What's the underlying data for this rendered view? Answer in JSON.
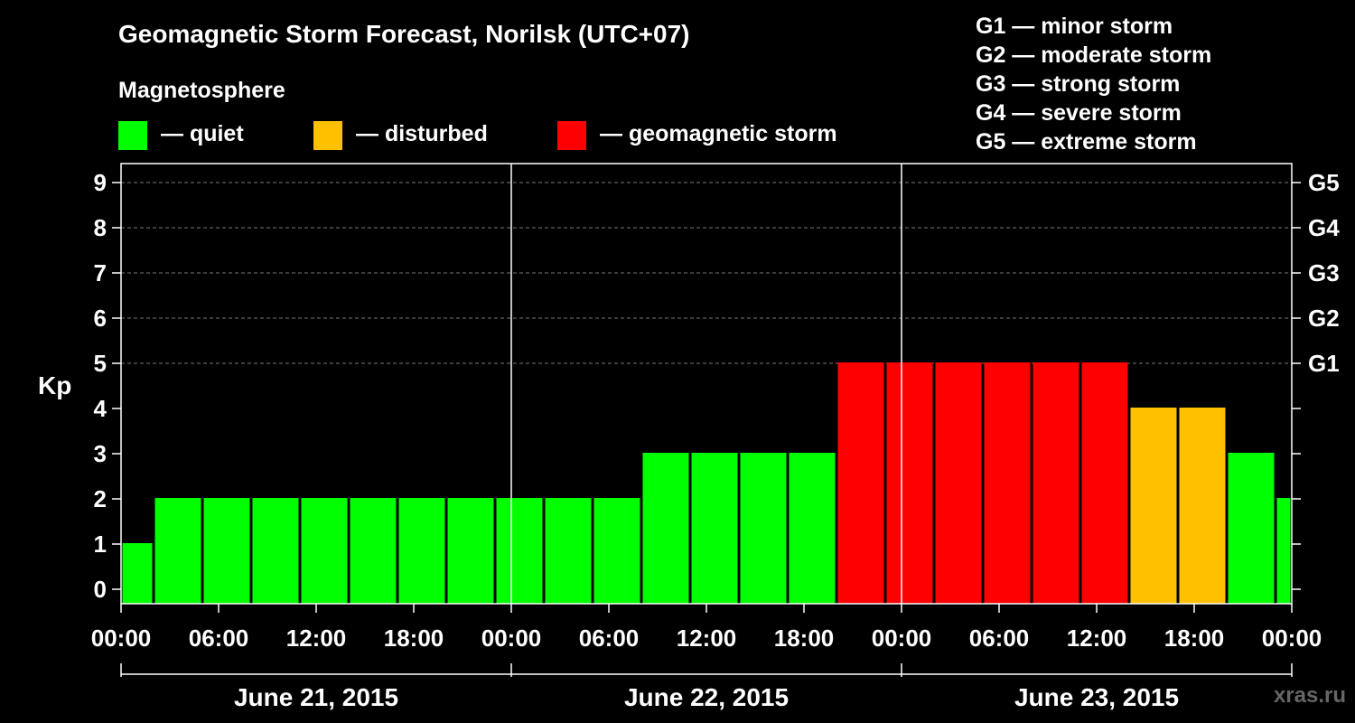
{
  "title": "Geomagnetic Storm Forecast, Norilsk (UTC+07)",
  "magnetosphere_label": "Magnetosphere",
  "legend": [
    {
      "label": "— quiet",
      "color": "#00ff00"
    },
    {
      "label": "— disturbed",
      "color": "#ffc000"
    },
    {
      "label": "— geomagnetic storm",
      "color": "#ff0000"
    }
  ],
  "g_scale": [
    "G1 — minor storm",
    "G2 — moderate storm",
    "G3 — strong storm",
    "G4 — severe storm",
    "G5 — extreme storm"
  ],
  "watermark": "xras.ru",
  "chart_data": {
    "type": "bar",
    "ylabel": "Kp",
    "ylim": [
      0,
      9
    ],
    "y_ticks": [
      "0",
      "1",
      "2",
      "3",
      "4",
      "5",
      "6",
      "7",
      "8",
      "9"
    ],
    "right_ticks": [
      {
        "kp": 5,
        "label": "G1"
      },
      {
        "kp": 6,
        "label": "G2"
      },
      {
        "kp": 7,
        "label": "G3"
      },
      {
        "kp": 8,
        "label": "G4"
      },
      {
        "kp": 9,
        "label": "G5"
      }
    ],
    "x_tick_labels": [
      "00:00",
      "06:00",
      "12:00",
      "18:00",
      "00:00",
      "06:00",
      "12:00",
      "18:00",
      "00:00",
      "06:00",
      "12:00",
      "18:00",
      "00:00"
    ],
    "days": [
      "June 21, 2015",
      "June 22, 2015",
      "June 23, 2015"
    ],
    "bars": [
      {
        "start_hour": 0,
        "end_hour": 2,
        "kp": 1,
        "level": "quiet"
      },
      {
        "start_hour": 2,
        "end_hour": 5,
        "kp": 2,
        "level": "quiet"
      },
      {
        "start_hour": 5,
        "end_hour": 8,
        "kp": 2,
        "level": "quiet"
      },
      {
        "start_hour": 8,
        "end_hour": 11,
        "kp": 2,
        "level": "quiet"
      },
      {
        "start_hour": 11,
        "end_hour": 14,
        "kp": 2,
        "level": "quiet"
      },
      {
        "start_hour": 14,
        "end_hour": 17,
        "kp": 2,
        "level": "quiet"
      },
      {
        "start_hour": 17,
        "end_hour": 20,
        "kp": 2,
        "level": "quiet"
      },
      {
        "start_hour": 20,
        "end_hour": 23,
        "kp": 2,
        "level": "quiet"
      },
      {
        "start_hour": 23,
        "end_hour": 26,
        "kp": 2,
        "level": "quiet"
      },
      {
        "start_hour": 26,
        "end_hour": 29,
        "kp": 2,
        "level": "quiet"
      },
      {
        "start_hour": 29,
        "end_hour": 32,
        "kp": 2,
        "level": "quiet"
      },
      {
        "start_hour": 32,
        "end_hour": 35,
        "kp": 3,
        "level": "quiet"
      },
      {
        "start_hour": 35,
        "end_hour": 38,
        "kp": 3,
        "level": "quiet"
      },
      {
        "start_hour": 38,
        "end_hour": 41,
        "kp": 3,
        "level": "quiet"
      },
      {
        "start_hour": 41,
        "end_hour": 44,
        "kp": 3,
        "level": "quiet"
      },
      {
        "start_hour": 44,
        "end_hour": 47,
        "kp": 5,
        "level": "storm"
      },
      {
        "start_hour": 47,
        "end_hour": 50,
        "kp": 5,
        "level": "storm"
      },
      {
        "start_hour": 50,
        "end_hour": 53,
        "kp": 5,
        "level": "storm"
      },
      {
        "start_hour": 53,
        "end_hour": 56,
        "kp": 5,
        "level": "storm"
      },
      {
        "start_hour": 56,
        "end_hour": 59,
        "kp": 5,
        "level": "storm"
      },
      {
        "start_hour": 59,
        "end_hour": 62,
        "kp": 5,
        "level": "storm"
      },
      {
        "start_hour": 62,
        "end_hour": 65,
        "kp": 4,
        "level": "disturbed"
      },
      {
        "start_hour": 65,
        "end_hour": 68,
        "kp": 4,
        "level": "disturbed"
      },
      {
        "start_hour": 68,
        "end_hour": 71,
        "kp": 3,
        "level": "quiet"
      },
      {
        "start_hour": 71,
        "end_hour": 72,
        "kp": 2,
        "level": "quiet"
      }
    ],
    "level_colors": {
      "quiet": "#00ff00",
      "disturbed": "#ffc000",
      "storm": "#ff0000"
    },
    "grid": true,
    "legend_position": "top"
  }
}
